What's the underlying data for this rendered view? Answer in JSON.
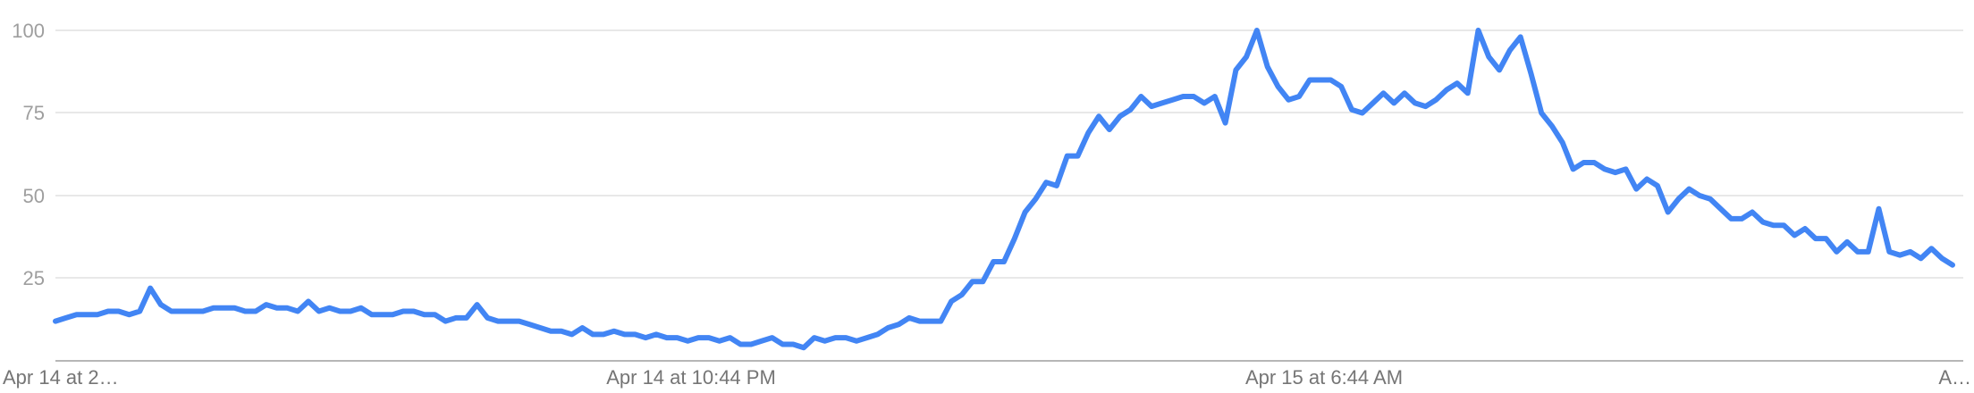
{
  "chart_data": {
    "type": "line",
    "title": "",
    "xlabel": "",
    "ylabel": "",
    "ylim": [
      0,
      100
    ],
    "yticks": [
      "100",
      "75",
      "50",
      "25"
    ],
    "xtick_labels": [
      "Apr 14 at 2…",
      "Apr 14 at 10:44 PM",
      "Apr 15 at 6:44 AM",
      "A…"
    ],
    "grid": true,
    "line_color": "#4285f4",
    "series": [
      {
        "values": [
          12,
          13,
          14,
          14,
          14,
          15,
          15,
          14,
          15,
          22,
          17,
          15,
          15,
          15,
          15,
          16,
          16,
          16,
          15,
          15,
          17,
          16,
          16,
          15,
          18,
          15,
          16,
          15,
          15,
          16,
          14,
          14,
          14,
          15,
          15,
          14,
          14,
          12,
          13,
          13,
          17,
          13,
          12,
          12,
          12,
          11,
          10,
          9,
          9,
          8,
          10,
          8,
          8,
          9,
          8,
          8,
          7,
          8,
          7,
          7,
          6,
          7,
          7,
          6,
          7,
          5,
          5,
          6,
          7,
          5,
          5,
          4,
          7,
          6,
          7,
          7,
          6,
          7,
          8,
          10,
          11,
          13,
          12,
          12,
          12,
          18,
          20,
          24,
          24,
          30,
          30,
          37,
          45,
          49,
          54,
          53,
          62,
          62,
          69,
          74,
          70,
          74,
          76,
          80,
          77,
          78,
          79,
          80,
          80,
          78,
          80,
          72,
          88,
          92,
          100,
          89,
          83,
          79,
          80,
          85,
          85,
          85,
          83,
          76,
          75,
          78,
          81,
          78,
          81,
          78,
          77,
          79,
          82,
          84,
          81,
          100,
          92,
          88,
          94,
          98,
          87,
          75,
          71,
          66,
          58,
          60,
          60,
          58,
          57,
          58,
          52,
          55,
          53,
          45,
          49,
          52,
          50,
          49,
          46,
          43,
          43,
          45,
          42,
          41,
          41,
          38,
          40,
          37,
          37,
          33,
          36,
          33,
          33,
          46,
          33,
          32,
          33,
          31,
          34,
          31,
          29
        ]
      }
    ]
  }
}
